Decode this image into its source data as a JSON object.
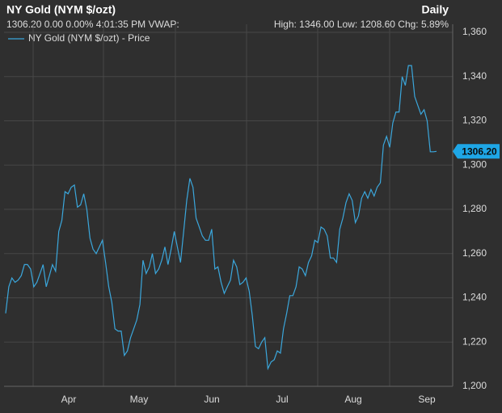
{
  "chart_data": {
    "type": "line",
    "title": "NY Gold (NYM $/ozt)",
    "interval": "Daily",
    "quote_line": "1306.20 0.00 0.00% 4:01:35 PM VWAP:",
    "stats_line": "High: 1346.00 Low: 1208.60 Chg: 5.89%",
    "x_labels": [
      "Apr",
      "May",
      "Jun",
      "Jul",
      "Aug",
      "Sep"
    ],
    "series": [
      {
        "name": "NY Gold (NYM $/ozt) - Price",
        "color": "#3ba7dc",
        "values": [
          1233,
          1245,
          1249,
          1247,
          1248,
          1250,
          1255,
          1255,
          1253,
          1245,
          1247,
          1251,
          1255,
          1245,
          1250,
          1255,
          1252,
          1270,
          1275,
          1288,
          1287,
          1290,
          1291,
          1281,
          1282,
          1287,
          1280,
          1267,
          1262,
          1260,
          1263,
          1266,
          1256,
          1245,
          1238,
          1226,
          1225,
          1225,
          1214,
          1216,
          1222,
          1226,
          1230,
          1237,
          1257,
          1251,
          1254,
          1260,
          1251,
          1253,
          1257,
          1263,
          1255,
          1262,
          1270,
          1263,
          1256,
          1270,
          1284,
          1294,
          1290,
          1276,
          1272,
          1268,
          1266,
          1266,
          1271,
          1253,
          1254,
          1247,
          1242,
          1245,
          1248,
          1257,
          1254,
          1246,
          1247,
          1249,
          1243,
          1232,
          1218,
          1217,
          1220,
          1222,
          1208,
          1211,
          1212,
          1216,
          1215,
          1226,
          1233,
          1241,
          1241,
          1245,
          1254,
          1253,
          1250,
          1256,
          1259,
          1266,
          1265,
          1272,
          1271,
          1268,
          1258,
          1258,
          1256,
          1271,
          1276,
          1283,
          1287,
          1284,
          1274,
          1277,
          1285,
          1288,
          1285,
          1289,
          1286,
          1290,
          1292,
          1309,
          1313,
          1308,
          1319,
          1324,
          1324,
          1340,
          1336,
          1345,
          1345,
          1331,
          1327,
          1323,
          1325,
          1320,
          1306,
          1306,
          1306.2
        ]
      }
    ],
    "price_tag": {
      "value": 1306.2,
      "label": "1306.20"
    },
    "ylim": [
      1200,
      1360
    ],
    "yticks": [
      {
        "value": 1200,
        "label": "1,200"
      },
      {
        "value": 1220,
        "label": "1,220"
      },
      {
        "value": 1240,
        "label": "1,240"
      },
      {
        "value": 1260,
        "label": "1,260"
      },
      {
        "value": 1280,
        "label": "1,280"
      },
      {
        "value": 1300,
        "label": "1,300"
      },
      {
        "value": 1320,
        "label": "1,320"
      },
      {
        "value": 1340,
        "label": "1,340"
      },
      {
        "value": 1360,
        "label": "1,360"
      }
    ],
    "grid": true
  }
}
